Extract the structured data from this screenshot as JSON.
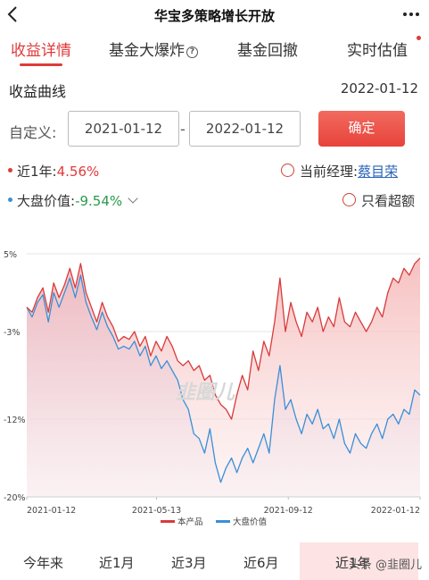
{
  "header": {
    "title": "华宝多策略增长开放",
    "back_icon": "chevron-left-icon",
    "more_icon": "more-dots-icon"
  },
  "tabs": [
    {
      "label": "收益详情",
      "active": true
    },
    {
      "label": "基金大爆炸",
      "active": false,
      "help": "?"
    },
    {
      "label": "基金回撤",
      "active": false
    },
    {
      "label": "实时估值",
      "active": false
    }
  ],
  "section": {
    "title": "收益曲线",
    "date": "2022-01-12"
  },
  "custom_range": {
    "label": "自定义:",
    "start": "2021-01-12",
    "sep": "-",
    "end": "2022-01-12",
    "confirm": "确定"
  },
  "stats": {
    "fund_label": "近1年:",
    "fund_value": "4.56%",
    "index_label": "大盘价值:",
    "index_value": "-9.54%",
    "manager_label": "当前经理:",
    "manager_name": "蔡目荣",
    "excess_label": "只看超额"
  },
  "colors": {
    "accent": "#e03a3a",
    "fund_line": "#d93a3a",
    "index_line": "#3a8fd8"
  },
  "chart_data": {
    "type": "line",
    "y_ticks": [
      "5%",
      "-3%",
      "-12%",
      "-20%"
    ],
    "ylim": [
      -20,
      5
    ],
    "x_ticks": [
      "2021-01-12",
      "2021-05-13",
      "2021-09-12",
      "2022-01-12"
    ],
    "legend": [
      "本产品",
      "大盘价值"
    ],
    "watermark": "韭圈儿",
    "series": [
      {
        "name": "本产品",
        "color": "#d93a3a",
        "values": [
          -0.5,
          -1.0,
          0.5,
          1.5,
          -1.0,
          2.0,
          0.5,
          1.8,
          3.5,
          1.5,
          4.0,
          1.0,
          -0.5,
          -2.0,
          0.0,
          -1.5,
          -2.5,
          -4.0,
          -3.5,
          -3.8,
          -3.0,
          -4.5,
          -3.5,
          -5.5,
          -4.0,
          -5.0,
          -3.5,
          -4.5,
          -6.0,
          -6.5,
          -6.0,
          -7.0,
          -6.5,
          -8.0,
          -7.5,
          -9.5,
          -10.5,
          -11.0,
          -12.0,
          -9.5,
          -7.5,
          -9.0,
          -5.0,
          -7.0,
          -4.0,
          -5.5,
          -2.0,
          2.5,
          -3.0,
          0.0,
          -2.0,
          -3.5,
          -1.0,
          -2.0,
          -0.5,
          -3.0,
          -1.5,
          -2.5,
          0.5,
          -2.0,
          -2.5,
          -1.0,
          -2.0,
          -3.0,
          -2.0,
          -0.5,
          -1.5,
          1.0,
          2.5,
          2.0,
          3.5,
          2.8,
          4.0,
          4.56
        ]
      },
      {
        "name": "大盘价值",
        "color": "#3a8fd8",
        "values": [
          -0.5,
          -1.5,
          0.0,
          0.8,
          -2.0,
          1.0,
          -0.5,
          1.0,
          2.5,
          0.5,
          2.8,
          0.0,
          -1.5,
          -2.8,
          -1.0,
          -2.5,
          -3.5,
          -4.8,
          -4.5,
          -4.8,
          -4.0,
          -5.5,
          -4.5,
          -6.5,
          -5.5,
          -6.8,
          -6.0,
          -7.0,
          -8.0,
          -10.0,
          -11.0,
          -13.5,
          -14.0,
          -15.5,
          -13.0,
          -16.5,
          -18.5,
          -17.0,
          -16.0,
          -17.5,
          -16.0,
          -15.0,
          -16.5,
          -15.0,
          -13.5,
          -15.5,
          -10.0,
          -6.5,
          -11.0,
          -10.0,
          -12.0,
          -13.5,
          -11.5,
          -12.5,
          -11.0,
          -13.0,
          -12.5,
          -14.0,
          -12.0,
          -14.5,
          -15.5,
          -13.5,
          -14.5,
          -15.0,
          -13.5,
          -12.5,
          -14.0,
          -12.0,
          -11.5,
          -12.5,
          -11.0,
          -11.5,
          -9.0,
          -9.54
        ]
      }
    ]
  },
  "periods": [
    {
      "label": "今年来",
      "active": false
    },
    {
      "label": "近1月",
      "active": false
    },
    {
      "label": "近3月",
      "active": false
    },
    {
      "label": "近6月",
      "active": false
    },
    {
      "label": "近1年",
      "active": true
    }
  ],
  "footer": {
    "watermark": "头条 @韭圈儿"
  }
}
